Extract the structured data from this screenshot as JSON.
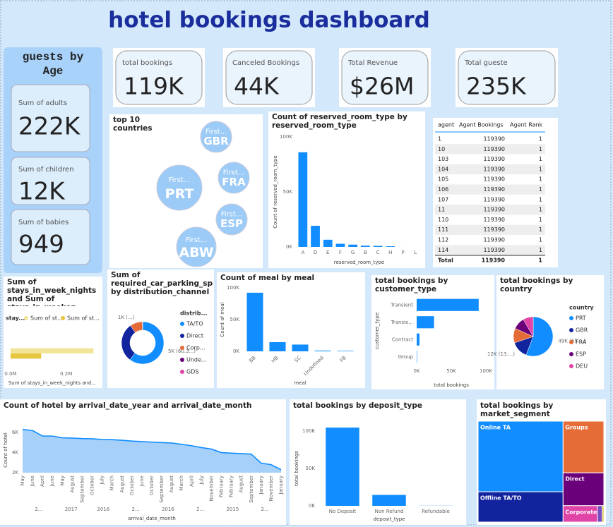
{
  "title": "hotel bookings dashboard",
  "guests": {
    "title_lines": [
      "guests by",
      "Age"
    ],
    "cards": [
      {
        "label": "Sum of adults",
        "value": "222K"
      },
      {
        "label": "Sum of children",
        "value": "12K"
      },
      {
        "label": "Sum of babies",
        "value": "949"
      }
    ]
  },
  "kpis": [
    {
      "label": "total bookings",
      "value": "119K"
    },
    {
      "label": "Canceled Bookings",
      "value": "44K"
    },
    {
      "label": "Total Revenue",
      "value": "$26M"
    },
    {
      "label": "Total gueste",
      "value": "235K"
    }
  ],
  "table": {
    "columns": [
      "agent",
      "Agent Bookings",
      "Agent Rank"
    ],
    "rows": [
      [
        "1",
        119390,
        1
      ],
      [
        "10",
        119390,
        1
      ],
      [
        "103",
        119390,
        1
      ],
      [
        "104",
        119390,
        1
      ],
      [
        "105",
        119390,
        1
      ],
      [
        "106",
        119390,
        1
      ],
      [
        "107",
        119390,
        1
      ],
      [
        "11",
        119390,
        1
      ],
      [
        "110",
        119390,
        1
      ],
      [
        "111",
        119390,
        1
      ],
      [
        "112",
        119390,
        1
      ],
      [
        "114",
        119390,
        1
      ]
    ],
    "total": [
      "Total",
      119390,
      1
    ]
  },
  "chart_data": [
    {
      "type": "bubble",
      "title": "top 10 countries",
      "categories": [
        "GBR",
        "FRA",
        "PRT",
        "ESP",
        "ABW"
      ],
      "point_label": "First...",
      "color": "#9ccbf7"
    },
    {
      "type": "bar",
      "title": "Count of reserved_room_type by reserved_room_type",
      "categories": [
        "A",
        "D",
        "E",
        "F",
        "G",
        "B",
        "C",
        "H",
        "P",
        "L"
      ],
      "values": [
        85994,
        19201,
        6535,
        2897,
        2094,
        1118,
        932,
        601,
        12,
        6
      ],
      "color": "#118dff",
      "ylim": [
        0,
        100000
      ],
      "yticks": [
        {
          "value": 0,
          "label": "0K"
        },
        {
          "value": 50000,
          "label": "50K"
        },
        {
          "value": 100000,
          "label": "100K"
        }
      ],
      "xlabel": "reserved_room_type",
      "ylabel": "Count of reserved_room_type",
      "grid": false
    },
    {
      "type": "hbar",
      "title": "Sum of stays_in_week_nights and Sum of stays_in_weeken...",
      "legend_title": "stay...",
      "categories": [
        null
      ],
      "series": [
        {
          "name": "Sum of st...",
          "color": "#f2e597",
          "values": [
            298511
          ]
        },
        {
          "name": "Sum of st...",
          "color": "#e6c53f",
          "values": [
            110000
          ]
        }
      ],
      "xlim": [
        0,
        300000
      ],
      "xticks": [
        {
          "value": 0,
          "label": "0.0M"
        },
        {
          "value": 200000,
          "label": "0.2M"
        }
      ],
      "xlabel": "Sum of stays_in_week_nights and..."
    },
    {
      "type": "donut",
      "title": "Sum of required_car_parking_spaces by distribution_channel",
      "legend_title": "distrib...",
      "categories": [
        "TA/TO",
        "Direct",
        "Corp...",
        "Unde...",
        "GDS"
      ],
      "values": [
        4700,
        2330,
        750,
        10,
        4
      ],
      "value_labels": [
        "5K (60.3...)",
        null,
        "1K (...)",
        null,
        null
      ],
      "colors": [
        "#118dff",
        "#12239e",
        "#e66c37",
        "#6b007b",
        "#e044a7"
      ]
    },
    {
      "type": "bar",
      "title": "Count of meal by meal",
      "categories": [
        "BB",
        "HB",
        "SC",
        "Undefined",
        "FB"
      ],
      "values": [
        92310,
        14463,
        10650,
        1169,
        798
      ],
      "color": "#118dff",
      "ylim": [
        0,
        100000
      ],
      "yticks": [
        {
          "value": 0,
          "label": "0K"
        },
        {
          "value": 50000,
          "label": "50K"
        },
        {
          "value": 100000,
          "label": "100K"
        }
      ],
      "xlabel": "meal",
      "ylabel": "Count of meal",
      "grid": false
    },
    {
      "type": "hbar",
      "title": "total bookings by customer_type",
      "categories": [
        "Transient",
        "Transie...",
        "Contract",
        "Group"
      ],
      "values": [
        89613,
        25124,
        4076,
        577
      ],
      "color": "#118dff",
      "xlim": [
        0,
        100000
      ],
      "xticks": [
        {
          "value": 0,
          "label": "0K"
        },
        {
          "value": 50000,
          "label": "50K"
        },
        {
          "value": 100000,
          "label": "100K"
        }
      ],
      "xlabel": "total bookings",
      "ylabel": "customer_type"
    },
    {
      "type": "pie",
      "title": "total bookings by country",
      "legend_title": "country",
      "categories": [
        "PRT",
        "GBR",
        "FRA",
        "ESP",
        "DEU"
      ],
      "values": [
        48590,
        12129,
        10415,
        8568,
        7287
      ],
      "value_labels": [
        "49K (55....)",
        "12K (13....)",
        null,
        null,
        null
      ],
      "colors": [
        "#118dff",
        "#12239e",
        "#e66c37",
        "#6b007b",
        "#e044a7"
      ]
    },
    {
      "type": "area",
      "title": "Count of hotel by arrival_date_year and arrival_date_month",
      "categories": [
        "May",
        "June",
        "April",
        "June",
        "May",
        "August",
        "September",
        "October",
        "July",
        "March",
        "August",
        "October",
        "June",
        "October",
        "September",
        "August",
        "March",
        "April",
        "July",
        "November",
        "February",
        "February",
        "August",
        "September",
        "January",
        "November",
        "January"
      ],
      "values": [
        6313,
        6200,
        5661,
        5647,
        5478,
        5450,
        5400,
        5380,
        5313,
        5290,
        5230,
        5150,
        5100,
        5050,
        5000,
        4957,
        4824,
        4690,
        4500,
        4350,
        4000,
        3950,
        3900,
        3850,
        2950,
        2800,
        2300
      ],
      "x_group_labels": [
        "2...",
        "2017",
        "2016",
        "2...",
        "2016",
        "2...",
        "2015",
        "2..."
      ],
      "color": "#118dff",
      "ylim": [
        2000,
        6500
      ],
      "yticks": [
        {
          "value": 2000,
          "label": "2K"
        },
        {
          "value": 4000,
          "label": "4K"
        },
        {
          "value": 6000,
          "label": "6K"
        }
      ],
      "xlabel": "arrival_date_month",
      "ylabel": "Count of hotel"
    },
    {
      "type": "bar",
      "title": "total bookings by deposit_type",
      "categories": [
        "No Deposit",
        "Non Refund",
        "Refundable"
      ],
      "values": [
        104641,
        14587,
        162
      ],
      "color": "#118dff",
      "ylim": [
        0,
        100000
      ],
      "yticks": [
        {
          "value": 0,
          "label": "0K"
        },
        {
          "value": 50000,
          "label": "50K"
        },
        {
          "value": 100000,
          "label": "100K"
        }
      ],
      "xlabel": "deposit_type",
      "ylabel": "total bookings",
      "grid": false
    },
    {
      "type": "treemap",
      "title": "total bookings by market_segment",
      "categories": [
        "Online TA",
        "Offline TA/TO",
        "Groups",
        "Direct",
        "Corporate",
        null,
        null
      ],
      "values": [
        56477,
        24219,
        19811,
        12606,
        5295,
        743,
        237
      ],
      "colors": [
        "#118dff",
        "#12239e",
        "#e66c37",
        "#6b007b",
        "#e044a7",
        "#744ec2",
        "#d9b300"
      ]
    }
  ]
}
